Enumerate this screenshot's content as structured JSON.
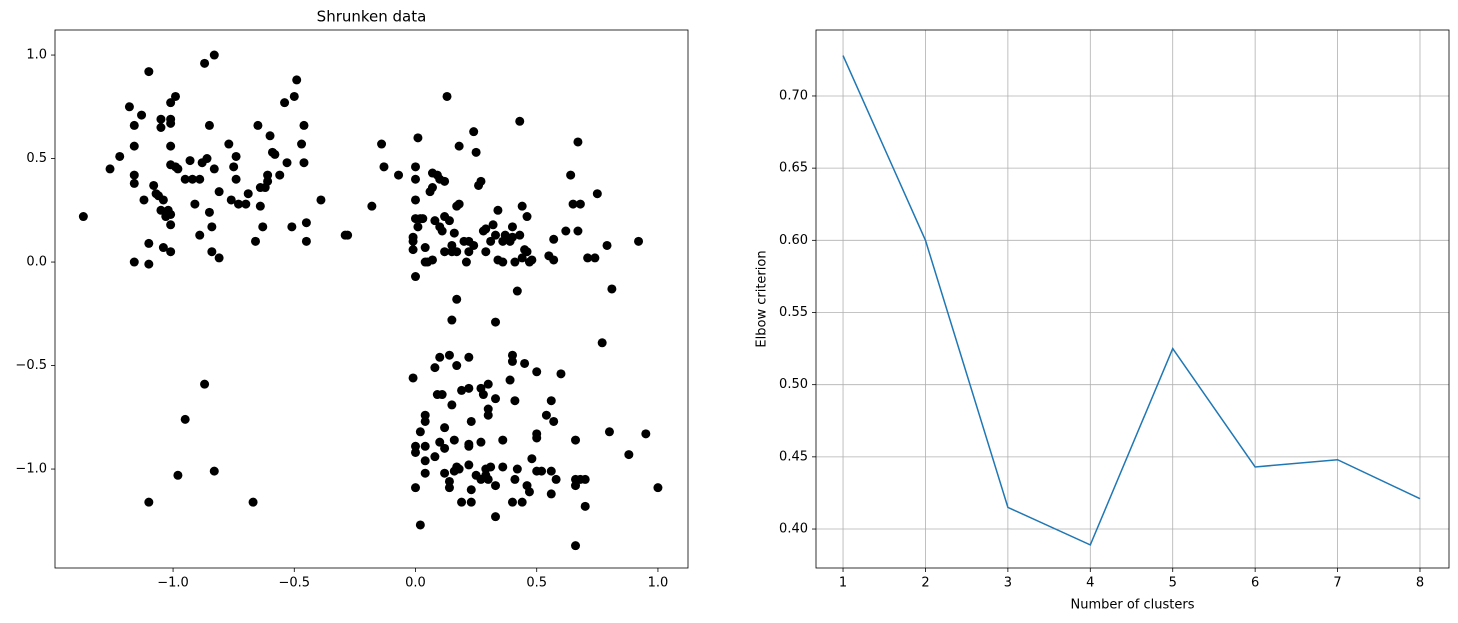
{
  "chart_data": [
    {
      "type": "scatter",
      "title": "Shrunken data",
      "color": "#000000",
      "x": [
        -1.37,
        -1.26,
        -1.22,
        -1.18,
        -1.16,
        -1.16,
        -1.16,
        -1.16,
        -1.16,
        -1.13,
        -1.12,
        -1.1,
        -1.1,
        -1.1,
        -1.08,
        -1.07,
        -1.06,
        -1.05,
        -1.05,
        -1.05,
        -1.04,
        -1.04,
        -1.03,
        -1.02,
        -1.01,
        -1.01,
        -1.01,
        -1.01,
        -1.01,
        -1.01,
        -1.01,
        -1.01,
        -0.99,
        -0.99,
        -0.98,
        -0.95,
        -0.93,
        -0.92,
        -0.91,
        -0.89,
        -0.89,
        -0.88,
        -0.87,
        -0.86,
        -0.85,
        -0.85,
        -0.84,
        -0.84,
        -0.83,
        -0.83,
        -0.81,
        -0.81,
        -0.77,
        -0.76,
        -0.75,
        -0.74,
        -0.74,
        -0.73,
        -0.7,
        -0.69,
        -0.66,
        -0.65,
        -0.64,
        -0.64,
        -0.63,
        -0.62,
        -0.61,
        -0.61,
        -0.6,
        -0.59,
        -0.58,
        -0.56,
        -0.54,
        -0.53,
        -0.51,
        -0.5,
        -0.49,
        -0.47,
        -0.46,
        -0.46,
        -0.45,
        -0.45,
        -0.39,
        -0.29,
        -0.28,
        -0.87,
        -0.95,
        -0.83,
        -0.98,
        -1.1,
        -0.67,
        -0.18,
        -0.14,
        -0.13,
        -0.07,
        -0.01,
        -0.01,
        -0.01,
        0.0,
        0.0,
        0.0,
        0.0,
        0.0,
        0.01,
        0.01,
        0.02,
        0.03,
        0.04,
        0.04,
        0.05,
        0.06,
        0.07,
        0.07,
        0.07,
        0.08,
        0.09,
        0.1,
        0.1,
        0.11,
        0.12,
        0.12,
        0.12,
        0.13,
        0.14,
        0.15,
        0.15,
        0.16,
        0.17,
        0.17,
        0.18,
        0.18,
        0.2,
        0.21,
        0.22,
        0.22,
        0.24,
        0.24,
        0.25,
        0.26,
        0.27,
        0.28,
        0.29,
        0.29,
        0.31,
        0.32,
        0.33,
        0.34,
        0.34,
        0.36,
        0.36,
        0.37,
        0.39,
        0.4,
        0.4,
        0.41,
        0.42,
        0.43,
        0.43,
        0.44,
        0.44,
        0.45,
        0.46,
        0.46,
        0.47,
        0.48,
        0.55,
        0.57,
        0.57,
        0.62,
        0.64,
        0.65,
        0.67,
        0.67,
        0.68,
        0.71,
        0.74,
        0.75,
        0.79,
        0.81,
        0.92,
        0.17,
        0.15,
        0.33,
        -0.01,
        0.1,
        0.14,
        0.08,
        0.22,
        0.17,
        0.4,
        0.4,
        0.45,
        0.5,
        0.6,
        0.39,
        0.3,
        0.27,
        0.19,
        0.22,
        0.09,
        0.11,
        0.28,
        0.33,
        0.41,
        0.56,
        0.15,
        0.3,
        0.3,
        0.54,
        0.04,
        0.04,
        0.57,
        0.23,
        0.12,
        0.02,
        0.77,
        0.8,
        0.95,
        0.5,
        0.5,
        0.16,
        0.36,
        0.27,
        0.1,
        0.22,
        0.04,
        0.12,
        0.22,
        0.0,
        0.0,
        0.66,
        0.88,
        0.08,
        0.04,
        0.48,
        0.22,
        0.17,
        0.16,
        0.12,
        0.18,
        0.04,
        0.29,
        0.31,
        0.36,
        0.42,
        0.5,
        0.52,
        0.56,
        0.29,
        0.27,
        0.3,
        0.14,
        0.25,
        0.41,
        0.58,
        0.66,
        0.68,
        0.7,
        0.66,
        0.33,
        0.46,
        0.14,
        0.23,
        0.0,
        0.47,
        0.56,
        0.19,
        0.23,
        0.4,
        0.44,
        0.7,
        0.33,
        1.0,
        0.02,
        0.66
      ],
      "values": [
        0.22,
        0.45,
        0.51,
        0.75,
        0.66,
        0.56,
        0.42,
        0.38,
        0.0,
        0.71,
        0.3,
        0.92,
        0.09,
        -0.01,
        0.37,
        0.33,
        0.32,
        0.69,
        0.65,
        0.25,
        0.3,
        0.07,
        0.22,
        0.25,
        0.77,
        0.69,
        0.67,
        0.56,
        0.47,
        0.23,
        0.18,
        0.05,
        0.8,
        0.46,
        0.45,
        0.4,
        0.49,
        0.4,
        0.28,
        0.13,
        0.4,
        0.48,
        0.96,
        0.5,
        0.24,
        0.66,
        0.17,
        0.05,
        1.0,
        0.45,
        0.34,
        0.02,
        0.57,
        0.3,
        0.46,
        0.4,
        0.51,
        0.28,
        0.28,
        0.33,
        0.1,
        0.66,
        0.27,
        0.36,
        0.17,
        0.36,
        0.42,
        0.39,
        0.61,
        0.53,
        0.52,
        0.42,
        0.77,
        0.48,
        0.17,
        0.8,
        0.88,
        0.57,
        0.48,
        0.66,
        0.1,
        0.19,
        0.3,
        0.13,
        0.13,
        -0.59,
        -0.76,
        -1.01,
        -1.03,
        -1.16,
        -1.16,
        0.27,
        0.57,
        0.46,
        0.42,
        0.06,
        0.12,
        0.1,
        0.46,
        0.4,
        0.3,
        -0.07,
        0.21,
        0.6,
        0.17,
        0.21,
        0.21,
        0.07,
        0.0,
        0.0,
        0.34,
        0.01,
        0.36,
        0.43,
        0.2,
        0.42,
        0.17,
        0.4,
        0.15,
        0.39,
        0.22,
        0.05,
        0.8,
        0.2,
        0.08,
        0.05,
        0.14,
        0.27,
        0.05,
        0.56,
        0.28,
        0.1,
        0.0,
        0.05,
        0.1,
        0.08,
        0.63,
        0.53,
        0.37,
        0.39,
        0.15,
        0.16,
        0.05,
        0.1,
        0.18,
        0.13,
        0.25,
        0.01,
        0.1,
        0.0,
        0.13,
        0.1,
        0.17,
        0.12,
        0.0,
        -0.14,
        0.68,
        0.13,
        0.27,
        0.02,
        0.06,
        0.22,
        0.05,
        0.0,
        0.01,
        0.03,
        0.01,
        0.11,
        0.15,
        0.42,
        0.28,
        0.58,
        0.15,
        0.28,
        0.02,
        0.02,
        0.33,
        0.08,
        -0.13,
        0.1,
        -0.18,
        -0.28,
        -0.29,
        -0.56,
        -0.46,
        -0.45,
        -0.51,
        -0.46,
        -0.5,
        -0.45,
        -0.48,
        -0.49,
        -0.53,
        -0.54,
        -0.57,
        -0.59,
        -0.61,
        -0.62,
        -0.61,
        -0.64,
        -0.64,
        -0.64,
        -0.66,
        -0.67,
        -0.67,
        -0.69,
        -0.71,
        -0.74,
        -0.74,
        -0.74,
        -0.77,
        -0.77,
        -0.77,
        -0.8,
        -0.82,
        -0.39,
        -0.82,
        -0.83,
        -0.83,
        -0.85,
        -0.86,
        -0.86,
        -0.87,
        -0.87,
        -0.88,
        -0.89,
        -0.9,
        -0.89,
        -0.89,
        -0.92,
        -0.86,
        -0.93,
        -0.94,
        -0.96,
        -0.95,
        -0.98,
        -0.99,
        -1.01,
        -1.02,
        -1.0,
        -1.02,
        -1.0,
        -0.99,
        -0.99,
        -1.0,
        -1.01,
        -1.01,
        -1.01,
        -1.03,
        -1.05,
        -1.05,
        -1.06,
        -1.03,
        -1.05,
        -1.05,
        -1.05,
        -1.05,
        -1.05,
        -1.08,
        -1.08,
        -1.08,
        -1.09,
        -1.1,
        -1.09,
        -1.11,
        -1.12,
        -1.16,
        -1.16,
        -1.16,
        -1.16,
        -1.18,
        -1.23,
        -1.09,
        -1.27,
        -1.37
      ],
      "xlim": [
        -1.487,
        1.124
      ],
      "ylim": [
        -1.478,
        1.121
      ],
      "xticks": [
        {
          "value": -1.0,
          "label": "−1.0"
        },
        {
          "value": -0.5,
          "label": "−0.5"
        },
        {
          "value": 0.0,
          "label": "0.0"
        },
        {
          "value": 0.5,
          "label": "0.5"
        },
        {
          "value": 1.0,
          "label": "1.0"
        }
      ],
      "yticks": [
        {
          "value": -1.0,
          "label": "−1.0"
        },
        {
          "value": -0.5,
          "label": "−0.5"
        },
        {
          "value": 0.0,
          "label": "0.0"
        },
        {
          "value": 0.5,
          "label": "0.5"
        },
        {
          "value": 1.0,
          "label": "1.0"
        }
      ],
      "grid": false
    },
    {
      "type": "line",
      "xlabel": "Number of clusters",
      "ylabel": "Elbow criterion",
      "color": "#1f77b4",
      "x": [
        1,
        2,
        3,
        4,
        5,
        6,
        7,
        8
      ],
      "values": [
        0.728,
        0.6,
        0.415,
        0.389,
        0.525,
        0.443,
        0.448,
        0.421
      ],
      "xlim": [
        0.672,
        8.352
      ],
      "ylim": [
        0.373,
        0.7457
      ],
      "xticks": [
        1,
        2,
        3,
        4,
        5,
        6,
        7,
        8
      ],
      "yticks": [
        {
          "value": 0.4,
          "label": "0.40"
        },
        {
          "value": 0.45,
          "label": "0.45"
        },
        {
          "value": 0.5,
          "label": "0.50"
        },
        {
          "value": 0.55,
          "label": "0.55"
        },
        {
          "value": 0.6,
          "label": "0.60"
        },
        {
          "value": 0.65,
          "label": "0.65"
        },
        {
          "value": 0.7,
          "label": "0.70"
        }
      ],
      "grid": true
    }
  ]
}
